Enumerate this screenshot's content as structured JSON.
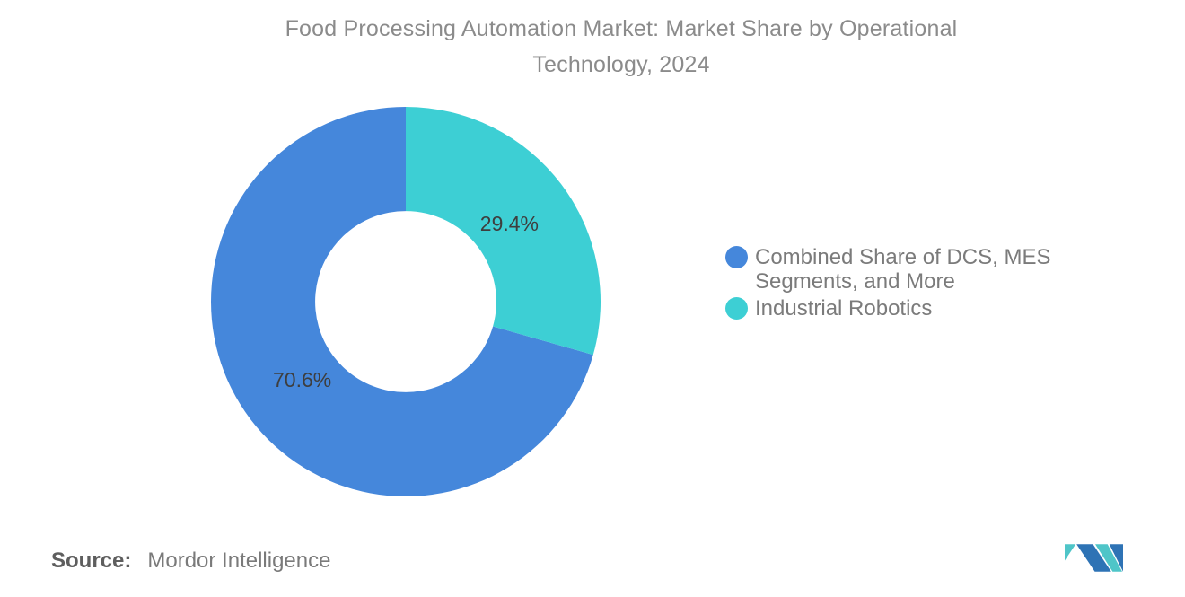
{
  "title": {
    "line1": "Food Processing Automation Market: Market Share by Operational",
    "line2": "Technology, 2024"
  },
  "chart_data": {
    "type": "pie",
    "title": "Food Processing Automation Market: Market Share by Operational Technology, 2024",
    "donut": true,
    "units": "%",
    "series": [
      {
        "name": "Combined Share of DCS, MES Segments, and More",
        "value": 70.6,
        "label": "70.6%",
        "color": "#4587DB"
      },
      {
        "name": "Industrial Robotics",
        "value": 29.4,
        "label": "29.4%",
        "color": "#3DCFD4"
      }
    ],
    "start_angle_deg": -90,
    "direction": "ccw",
    "inner_radius_ratio": 0.465,
    "data_label_color": "#3e3e3e",
    "legend_position": "right",
    "grid": false
  },
  "source": {
    "prefix": "Source:",
    "text": "Mordor Intelligence"
  },
  "logo": {
    "name": "mordor-intelligence-logo",
    "blue": "#2E73B5",
    "teal": "#4FC5C8"
  }
}
